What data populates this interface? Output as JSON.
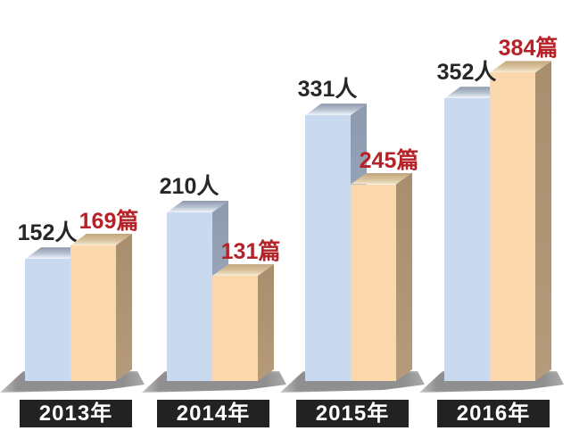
{
  "chart_data": {
    "type": "bar",
    "style": "3d-oblique-columns",
    "categories": [
      "2013年",
      "2014年",
      "2015年",
      "2016年"
    ],
    "series": [
      {
        "name": "人",
        "unit": "人",
        "values": [
          152,
          210,
          331,
          352
        ],
        "labels": [
          "152人",
          "210人",
          "331人",
          "352人"
        ],
        "bar_front_color": "#c9d9ef",
        "bar_top_gradient": [
          "#8d99ab",
          "#b8c2d2",
          "#e0e7f1",
          "#f3f6fa"
        ],
        "bar_side_gradient": [
          "#8e9aad",
          "#a5b1c4"
        ],
        "label_color": "#262626"
      },
      {
        "name": "篇",
        "unit": "篇",
        "values": [
          169,
          131,
          245,
          384
        ],
        "labels": [
          "169篇",
          "131篇",
          "245篇",
          "384篇"
        ],
        "bar_front_color": "#fbd7ac",
        "bar_top_gradient": [
          "#c1a67e",
          "#d9c29c",
          "#eedfc2",
          "#f6efdd"
        ],
        "bar_side_gradient": [
          "#a98e6e",
          "#b69b7b"
        ],
        "label_color": "#b52227"
      }
    ],
    "title": "",
    "xlabel": "",
    "ylabel": "",
    "ylim": [
      0,
      400
    ],
    "grid": false,
    "legend": "none",
    "x_axis_label_style": {
      "background": "#222222",
      "text_color": "#ffffff"
    },
    "floor_shadow_color": "#8a8a8a",
    "background_color": "#ffffff"
  }
}
